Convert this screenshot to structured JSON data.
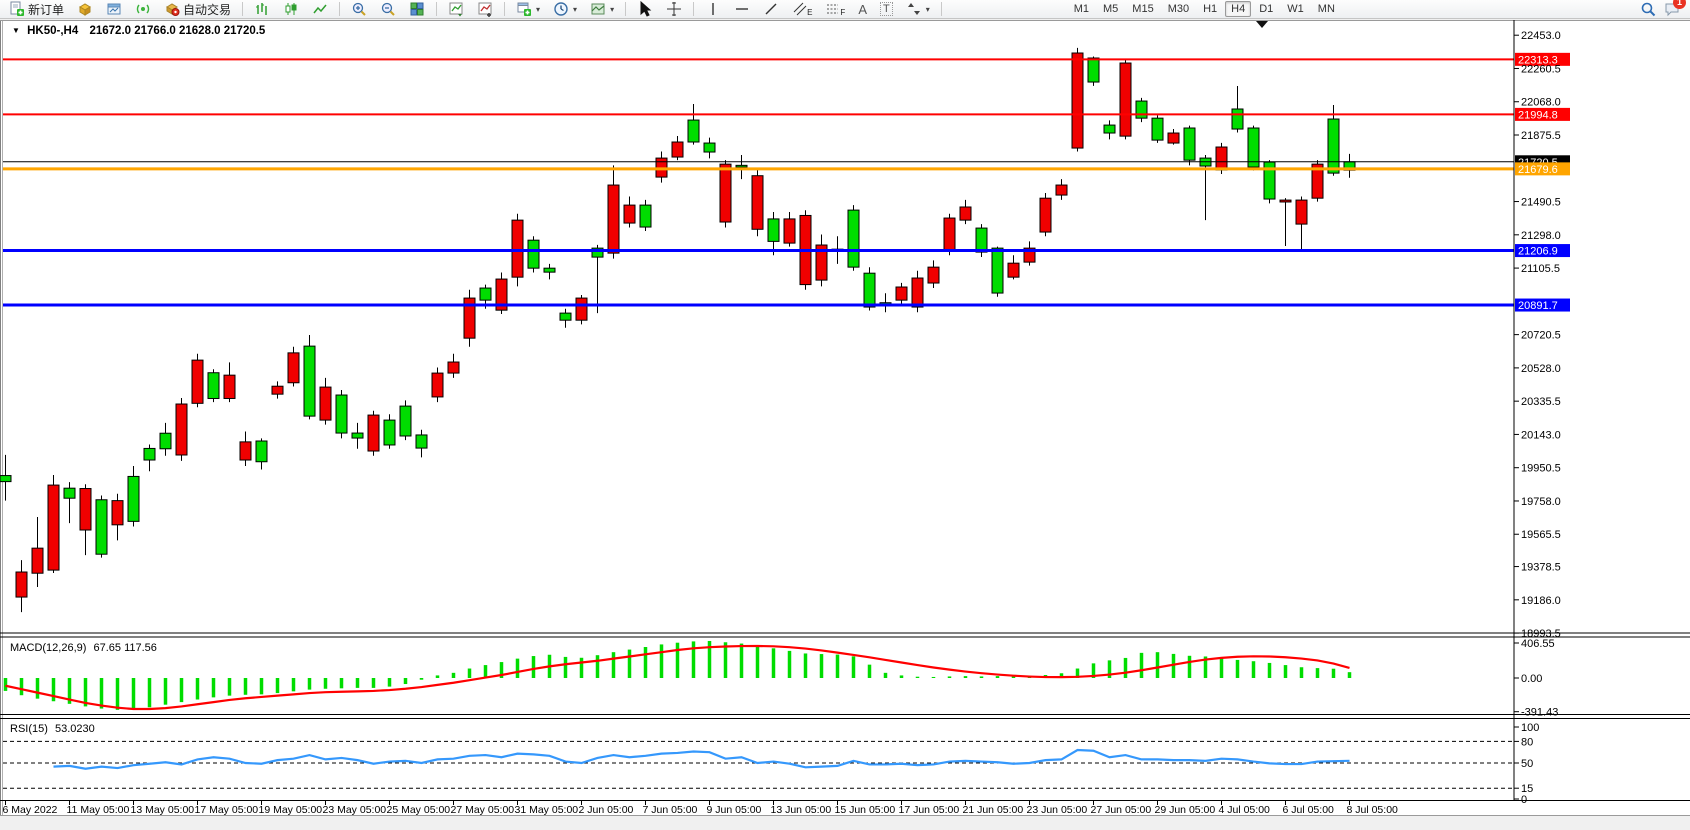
{
  "toolbar": {
    "new_order_label": "新订单",
    "auto_trading_label": "自动交易",
    "text_tool_label": "A",
    "textbox_tool_label": "T",
    "channel_tool_letter": "E",
    "fibo_tool_letter": "F",
    "timeframes": [
      "M1",
      "M5",
      "M15",
      "M30",
      "H1",
      "H4",
      "D1",
      "W1",
      "MN"
    ],
    "active_timeframe": "H4",
    "notification_count": "1",
    "icons": [
      "new-order-icon",
      "market-cube-icon",
      "chart-window-icon",
      "signal-icon",
      "autotrade-icon",
      "bar-chart-icon",
      "candlestick-icon",
      "line-chart-icon",
      "zoom-in-icon",
      "zoom-out-icon",
      "tile-windows-icon",
      "indicators-icon",
      "indicator-list-icon",
      "new-chart-icon",
      "periods-clock-icon",
      "templates-icon",
      "cursor-icon",
      "crosshair-icon",
      "vline-icon",
      "hline-icon",
      "trendline-icon",
      "channel-icon",
      "fibonacci-icon",
      "text-icon",
      "textbox-icon",
      "arrows-icon",
      "search-icon",
      "chat-icon"
    ]
  },
  "chart_header": {
    "collapse_icon": "▼",
    "symbol": "HK50-,H4",
    "ohlc": "21672.0 21766.0 21628.0 21720.5"
  },
  "colors": {
    "bull": "#00dd00",
    "bear": "#f00000",
    "wick": "#000000",
    "macd_hist": "#00dd00",
    "macd_signal": "#ff0000",
    "rsi_line": "#3598fc",
    "resistance": "#ff0000",
    "support": "#0000ff",
    "alert": "#ffa500",
    "bid": "#000000"
  },
  "chart_data": {
    "type": "candlestick",
    "symbol": "HK50-",
    "timeframe": "H4",
    "title": "HK50-,H4 21672.0 21766.0 21628.0 21720.5",
    "y_axis": {
      "ticks": [
        22453.0,
        22260.5,
        22068.0,
        21875.5,
        21490.5,
        21298.0,
        21105.5,
        20720.5,
        20528.0,
        20335.5,
        20143.0,
        19950.5,
        19758.0,
        19565.5,
        19378.5,
        19186.0,
        18993.5
      ]
    },
    "x_axis": {
      "candles_per_label": 4,
      "labels": [
        "6 May 2022",
        "11 May 05:00",
        "13 May 05:00",
        "17 May 05:00",
        "19 May 05:00",
        "23 May 05:00",
        "25 May 05:00",
        "27 May 05:00",
        "31 May 05:00",
        "2 Jun 05:00",
        "7 Jun 05:00",
        "9 Jun 05:00",
        "13 Jun 05:00",
        "15 Jun 05:00",
        "17 Jun 05:00",
        "21 Jun 05:00",
        "23 Jun 05:00",
        "27 Jun 05:00",
        "29 Jun 05:00",
        "4 Jul 05:00",
        "6 Jul 05:00",
        "8 Jul 05:00"
      ]
    },
    "price_lines": [
      {
        "value": 22313.3,
        "label": "22313.3",
        "color": "#ff0000",
        "width": 2
      },
      {
        "value": 21994.8,
        "label": "21994.8",
        "color": "#ff0000",
        "width": 2
      },
      {
        "value": 21720.5,
        "label": "21720.5",
        "color": "#000000",
        "width": 1
      },
      {
        "value": 21679.6,
        "label": "21679.6",
        "color": "#ffa500",
        "width": 3
      },
      {
        "value": 21206.9,
        "label": "21206.9",
        "color": "#0000ff",
        "width": 3
      },
      {
        "value": 20891.7,
        "label": "20891.7",
        "color": "#0000ff",
        "width": 3
      }
    ],
    "candles": [
      [
        19870,
        20025,
        19760,
        19905
      ],
      [
        19347,
        19416,
        19115,
        19202
      ],
      [
        19485,
        19665,
        19260,
        19340
      ],
      [
        19850,
        19908,
        19341,
        19358
      ],
      [
        19774,
        19867,
        19630,
        19832
      ],
      [
        19830,
        19855,
        19445,
        19590
      ],
      [
        19450,
        19790,
        19430,
        19765
      ],
      [
        19760,
        19800,
        19530,
        19620
      ],
      [
        19640,
        19960,
        19610,
        19900
      ],
      [
        19995,
        20085,
        19930,
        20062
      ],
      [
        20060,
        20210,
        20020,
        20150
      ],
      [
        20319,
        20354,
        19990,
        20024
      ],
      [
        20573,
        20610,
        20300,
        20323
      ],
      [
        20351,
        20520,
        20330,
        20500
      ],
      [
        20486,
        20560,
        20330,
        20351
      ],
      [
        20100,
        20160,
        19960,
        19995
      ],
      [
        19985,
        20120,
        19940,
        20105
      ],
      [
        20422,
        20450,
        20350,
        20376
      ],
      [
        20615,
        20650,
        20420,
        20442
      ],
      [
        20249,
        20718,
        20230,
        20654
      ],
      [
        20417,
        20470,
        20200,
        20226
      ],
      [
        20151,
        20400,
        20120,
        20371
      ],
      [
        20122,
        20210,
        20060,
        20151
      ],
      [
        20255,
        20280,
        20020,
        20047
      ],
      [
        20082,
        20260,
        20060,
        20226
      ],
      [
        20134,
        20340,
        20110,
        20307
      ],
      [
        20064,
        20170,
        20010,
        20140
      ],
      [
        20498,
        20530,
        20330,
        20360
      ],
      [
        20562,
        20610,
        20470,
        20498
      ],
      [
        20932,
        20980,
        20650,
        20700
      ],
      [
        20920,
        21010,
        20870,
        20990
      ],
      [
        21042,
        21080,
        20840,
        20862
      ],
      [
        21383,
        21420,
        21000,
        21053
      ],
      [
        21105,
        21290,
        21080,
        21267
      ],
      [
        21082,
        21130,
        21040,
        21105
      ],
      [
        20804,
        20870,
        20760,
        20845
      ],
      [
        20932,
        20950,
        20780,
        20804
      ],
      [
        21169,
        21240,
        20845,
        21221
      ],
      [
        21586,
        21700,
        21160,
        21192
      ],
      [
        21470,
        21520,
        21340,
        21366
      ],
      [
        21343,
        21500,
        21320,
        21470
      ],
      [
        21742,
        21780,
        21600,
        21632
      ],
      [
        21835,
        21870,
        21730,
        21748
      ],
      [
        21835,
        22055,
        21820,
        21962
      ],
      [
        21777,
        21860,
        21740,
        21829
      ],
      [
        21707,
        21730,
        21340,
        21372
      ],
      [
        21690,
        21760,
        21620,
        21700
      ],
      [
        21640,
        21680,
        21290,
        21330
      ],
      [
        21260,
        21430,
        21180,
        21390
      ],
      [
        21390,
        21430,
        21230,
        21250
      ],
      [
        21410,
        21440,
        20980,
        21010
      ],
      [
        21239,
        21300,
        21000,
        21036
      ],
      [
        21210,
        21290,
        21130,
        21215
      ],
      [
        21111,
        21470,
        21090,
        21441
      ],
      [
        20880,
        21110,
        20860,
        21076
      ],
      [
        20903,
        20960,
        20850,
        20905
      ],
      [
        20996,
        21020,
        20890,
        20920
      ],
      [
        21048,
        21090,
        20850,
        20880
      ],
      [
        21111,
        21150,
        20990,
        21019
      ],
      [
        21395,
        21420,
        21180,
        21210
      ],
      [
        21459,
        21500,
        21360,
        21383
      ],
      [
        21198,
        21360,
        21170,
        21337
      ],
      [
        20961,
        21230,
        20940,
        21221
      ],
      [
        21134,
        21180,
        21040,
        21053
      ],
      [
        21221,
        21260,
        21120,
        21140
      ],
      [
        21510,
        21540,
        21290,
        21314
      ],
      [
        21586,
        21620,
        21500,
        21528
      ],
      [
        22350,
        22380,
        21780,
        21800
      ],
      [
        22182,
        22330,
        22160,
        22321
      ],
      [
        21887,
        21960,
        21850,
        21933
      ],
      [
        22292,
        22310,
        21850,
        21869
      ],
      [
        21973,
        22090,
        21950,
        22072
      ],
      [
        21846,
        21990,
        21830,
        21973
      ],
      [
        21887,
        21910,
        21820,
        21829
      ],
      [
        21730,
        21930,
        21700,
        21916
      ],
      [
        21696,
        21760,
        21383,
        21742
      ],
      [
        21806,
        21830,
        21650,
        21673
      ],
      [
        21910,
        22159,
        21890,
        22026
      ],
      [
        21690,
        21930,
        21670,
        21916
      ],
      [
        21505,
        21730,
        21480,
        21719
      ],
      [
        21499,
        21510,
        21233,
        21488
      ],
      [
        21499,
        21520,
        21210,
        21360
      ],
      [
        21707,
        21730,
        21490,
        21510
      ],
      [
        21655,
        22049,
        21640,
        21968
      ],
      [
        21672,
        21766,
        21628,
        21720.5
      ]
    ],
    "macd": {
      "label": "MACD(12,26,9)",
      "values": "67.65 117.56",
      "axis_ticks": [
        "406.55",
        "0.00",
        "-391.43"
      ],
      "axis_values": [
        406.55,
        0,
        -391.43
      ],
      "hist": [
        -150,
        -200,
        -240,
        -270,
        -300,
        -330,
        -355,
        -370,
        -360,
        -340,
        -310,
        -280,
        -250,
        -225,
        -205,
        -195,
        -190,
        -175,
        -155,
        -135,
        -125,
        -120,
        -115,
        -115,
        -100,
        -70,
        -20,
        30,
        60,
        110,
        150,
        185,
        225,
        255,
        270,
        245,
        235,
        265,
        300,
        330,
        360,
        390,
        410,
        425,
        430,
        415,
        400,
        375,
        345,
        315,
        285,
        278,
        272,
        252,
        155,
        60,
        30,
        15,
        12,
        18,
        22,
        18,
        22,
        18,
        22,
        35,
        55,
        110,
        170,
        205,
        233,
        292,
        300,
        280,
        258,
        250,
        230,
        210,
        195,
        175,
        150,
        125,
        115,
        108,
        67.65
      ],
      "signal": [
        -90,
        -130,
        -170,
        -210,
        -250,
        -290,
        -320,
        -345,
        -360,
        -360,
        -350,
        -330,
        -305,
        -280,
        -255,
        -235,
        -220,
        -205,
        -190,
        -175,
        -165,
        -160,
        -155,
        -150,
        -140,
        -125,
        -105,
        -80,
        -55,
        -25,
        5,
        35,
        70,
        105,
        135,
        160,
        180,
        200,
        225,
        250,
        275,
        300,
        325,
        345,
        358,
        366,
        371,
        372,
        368,
        358,
        342,
        320,
        295,
        268,
        240,
        210,
        180,
        150,
        122,
        97,
        75,
        56,
        40,
        27,
        17,
        11,
        10,
        14,
        24,
        40,
        62,
        90,
        122,
        155,
        187,
        214,
        234,
        247,
        252,
        250,
        241,
        226,
        204,
        168,
        117.56
      ]
    },
    "rsi": {
      "label": "RSI(15)",
      "value": "53.0230",
      "levels": [
        80,
        50,
        15
      ],
      "axis_ticks": [
        "100",
        "80",
        "50",
        "15",
        "0"
      ],
      "axis_values": [
        100,
        80,
        50,
        15,
        0
      ],
      "start_index": 3,
      "series": [
        44,
        38,
        40,
        45,
        46,
        42,
        45,
        43,
        47,
        49,
        51,
        48,
        55,
        58,
        56,
        50,
        49,
        54,
        56,
        61,
        55,
        57,
        54,
        49,
        52,
        53,
        50,
        55,
        56,
        60,
        61,
        58,
        63,
        62,
        60,
        52,
        50,
        57,
        61,
        58,
        60,
        63,
        64,
        66,
        65,
        56,
        58,
        50,
        52,
        49,
        44,
        45,
        46,
        53,
        48,
        48,
        49,
        47,
        48,
        52,
        53,
        52,
        51,
        49,
        50,
        54,
        55,
        68,
        67,
        58,
        61,
        55,
        55,
        54,
        54,
        53,
        56,
        55,
        52,
        49.5,
        48.5,
        48.5,
        52,
        52.5,
        53.02
      ]
    }
  }
}
